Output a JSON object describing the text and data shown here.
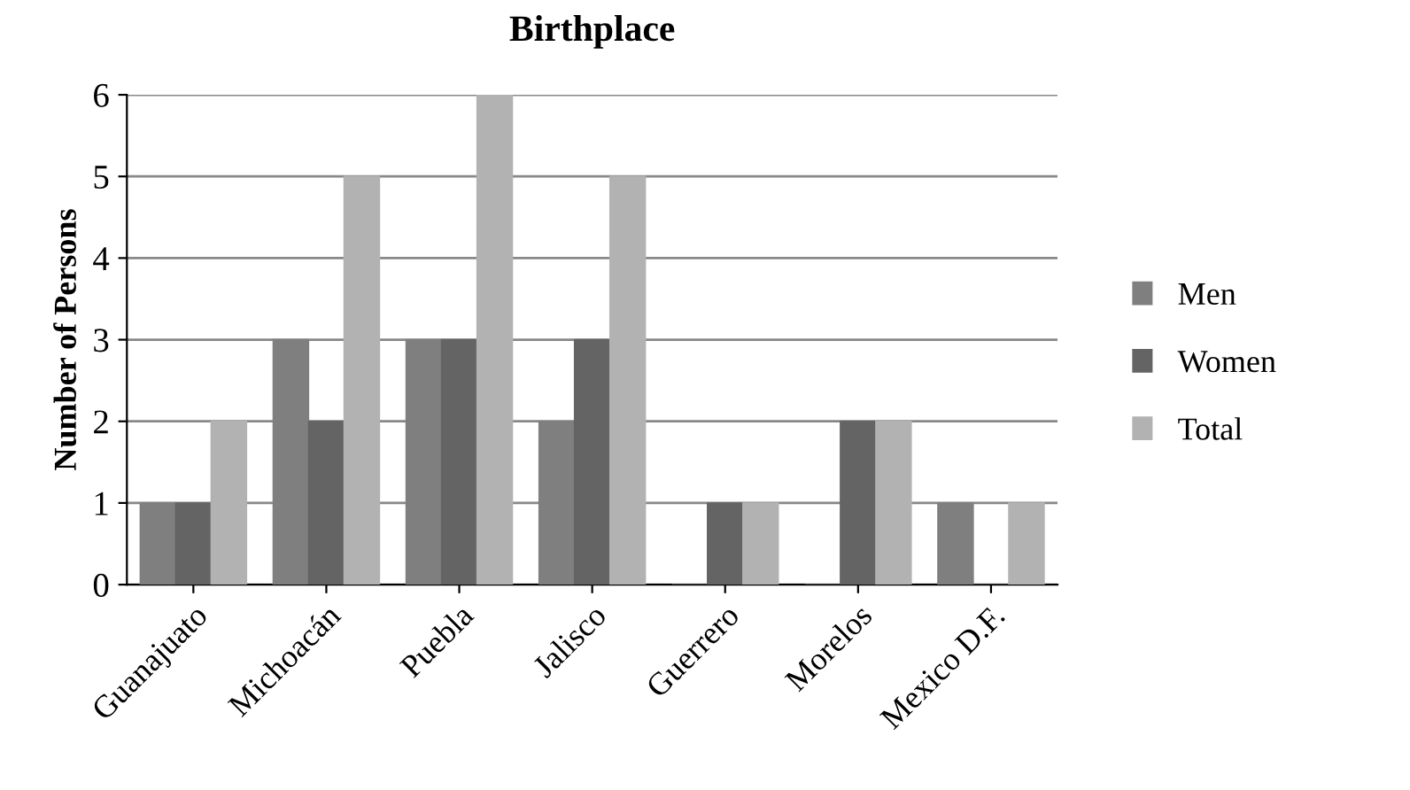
{
  "chart_data": {
    "type": "bar",
    "title": "Birthplace",
    "ylabel": "Number of Persons",
    "categories": [
      "Guanajuato",
      "Michoacán",
      "Puebla",
      "Jalisco",
      "Guerrero",
      "Morelos",
      "Mexico D.F."
    ],
    "series": [
      {
        "name": "Men",
        "color": "#7f7f7f",
        "values": [
          1,
          3,
          3,
          2,
          0,
          0,
          1
        ]
      },
      {
        "name": "Women",
        "color": "#646464",
        "values": [
          1,
          2,
          3,
          3,
          1,
          2,
          0
        ]
      },
      {
        "name": "Total",
        "color": "#b2b2b2",
        "values": [
          2,
          5,
          6,
          5,
          1,
          2,
          1
        ]
      }
    ],
    "ylim": [
      0,
      6
    ],
    "yticks": [
      0,
      1,
      2,
      3,
      4,
      5,
      6
    ],
    "grid": "y",
    "legend": "right"
  }
}
